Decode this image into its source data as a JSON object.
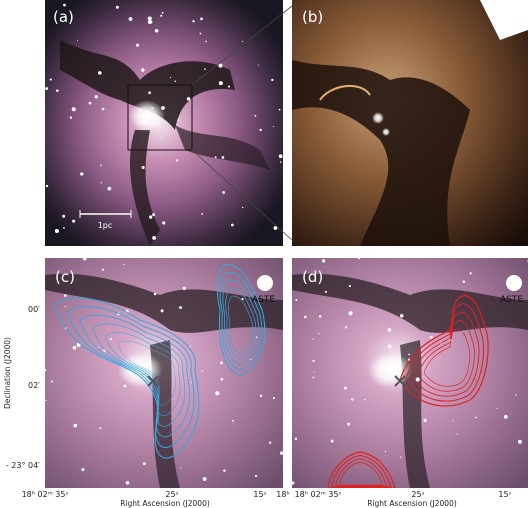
{
  "panels": [
    {
      "label": "(a)",
      "scale_bar": "1pc"
    },
    {
      "label": "(b)"
    },
    {
      "label": "(c)",
      "beam": "ASTE"
    },
    {
      "label": "(d)",
      "beam": "ASTE"
    }
  ],
  "axes": {
    "ylabel": "Declination (J2000)",
    "yticks": [
      "00′",
      "02′",
      "- 23° 04′"
    ],
    "xlabel": "Right Ascension (J2000)",
    "c_xticks": [
      "18ʰ 02ᵐ 35ˢ",
      "25ˢ",
      "15ˢ",
      "18ʰ"
    ],
    "d_xticks": [
      "18ʰ 02ᵐ 35ˢ",
      "25ˢ",
      "15ˢ"
    ]
  }
}
